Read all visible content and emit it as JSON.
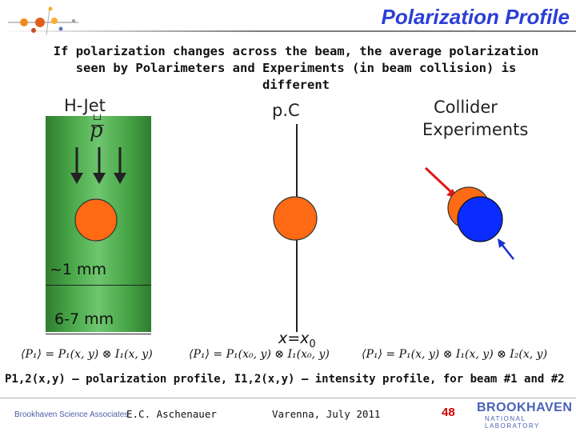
{
  "slide": {
    "title": "Polarization Profile",
    "intro": "If polarization changes across the beam, the average polarization seen by Polarimeters and Experiments (in beam collision) is different"
  },
  "panels": {
    "hjet": {
      "label": "H-Jet",
      "target_symbol": "p",
      "width_1": "~1 mm",
      "width_2": "6-7 mm"
    },
    "pc": {
      "label": "p.C",
      "position_label": "x=x",
      "position_subscript": "0"
    },
    "collider": {
      "label_line1": "Collider",
      "label_line2": "Experiments"
    }
  },
  "formulas": {
    "hjet": "⟨P₁⟩ = P₁(x, y) ⊗ I₁(x, y)",
    "pc": "⟨P₁⟩ = P₁(x₀, y) ⊗ I₁(x₀, y)",
    "collider": "⟨P₁⟩ = P₁(x, y) ⊗ I₁(x, y) ⊗ I₂(x, y)"
  },
  "caption": "P1,2(x,y) – polarization profile, I1,2(x,y) – intensity profile, for beam #1 and #2",
  "footer": {
    "organization": "Brookhaven Science Associates",
    "author": "E.C. Aschenauer",
    "venue": "Varenna, July 2011",
    "page": "48",
    "lab_name": "BROOKHAVEN",
    "lab_sub": "NATIONAL LABORATORY"
  },
  "colors": {
    "title": "#2b3fd6",
    "beam_orange": "#ff6a14",
    "beam_blue": "#0a2cff",
    "jet_green": "#4aa84a",
    "page_number": "#d40000"
  },
  "icons": {
    "logo": "atom-logo-icon"
  }
}
